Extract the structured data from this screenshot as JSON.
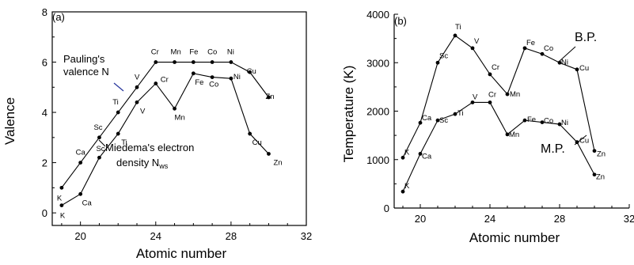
{
  "chart_data": [
    {
      "type": "line",
      "panel_label": "(a)",
      "xlabel": "Atomic number",
      "ylabel": "Valence",
      "xlim": [
        18.5,
        32
      ],
      "ylim": [
        -0.5,
        8
      ],
      "xticks": [
        20,
        24,
        28,
        32
      ],
      "yticks": [
        0,
        2,
        4,
        6,
        8
      ],
      "grid": false,
      "series": [
        {
          "x": [
            19,
            20,
            21,
            22,
            23,
            24,
            25,
            26,
            27,
            28,
            29,
            30
          ],
          "values": [
            1,
            2,
            3,
            4,
            5,
            6,
            6,
            6,
            6,
            6,
            5.6,
            4.6
          ],
          "labels": [
            "K",
            "Ca",
            "Sc",
            "Ti",
            "V",
            "Cr",
            "Mn",
            "Fe",
            "Co",
            "Ni",
            "Cu",
            "Zn"
          ]
        },
        {
          "x": [
            19,
            20,
            21,
            22,
            23,
            24,
            25,
            26,
            27,
            28,
            29,
            30
          ],
          "values": [
            0.3,
            0.75,
            2.2,
            3.15,
            4.4,
            5.15,
            4.15,
            5.55,
            5.4,
            5.35,
            3.15,
            2.35
          ],
          "labels": [
            "K",
            "Ca",
            "Sc",
            "Ti",
            "V",
            "Cr",
            "Mn",
            "Fe",
            "Co",
            "Ni",
            "Cu",
            "Zn"
          ]
        }
      ],
      "annotations": [
        {
          "lines": [
            "Pauling's",
            "valence N"
          ],
          "arrow_color": "#2b3a9e"
        },
        {
          "lines": [
            "Miedema's electron",
            "density N"
          ],
          "subscript": "ws"
        }
      ]
    },
    {
      "type": "line",
      "panel_label": "(b)",
      "xlabel": "Atomic number",
      "ylabel": "Temperature (K)",
      "xlim": [
        18.5,
        32
      ],
      "ylim": [
        0,
        4000
      ],
      "xticks": [
        20,
        24,
        28,
        32
      ],
      "yticks": [
        0,
        1000,
        2000,
        3000,
        4000
      ],
      "grid": false,
      "series": [
        {
          "name": "B.P.",
          "x": [
            19,
            20,
            21,
            22,
            23,
            24,
            25,
            26,
            27,
            28,
            29,
            30
          ],
          "values": [
            1040,
            1760,
            3000,
            3560,
            3300,
            2760,
            2350,
            3300,
            3180,
            3000,
            2860,
            1180
          ],
          "labels": [
            "K",
            "Ca",
            "Sc",
            "Ti",
            "V",
            "Cr",
            "Mn",
            "Fe",
            "Co",
            "Ni",
            "Cu",
            "Zn"
          ]
        },
        {
          "name": "M.P.",
          "x": [
            19,
            20,
            21,
            22,
            23,
            24,
            25,
            26,
            27,
            28,
            29,
            30
          ],
          "values": [
            340,
            1120,
            1810,
            1940,
            2180,
            2180,
            1520,
            1810,
            1770,
            1730,
            1360,
            690
          ],
          "labels": [
            "K",
            "Ca",
            "Sc",
            "Ti",
            "V",
            "Cr",
            "Mn",
            "Fe",
            "Co",
            "Ni",
            "Cu",
            "Zn"
          ]
        }
      ]
    }
  ]
}
